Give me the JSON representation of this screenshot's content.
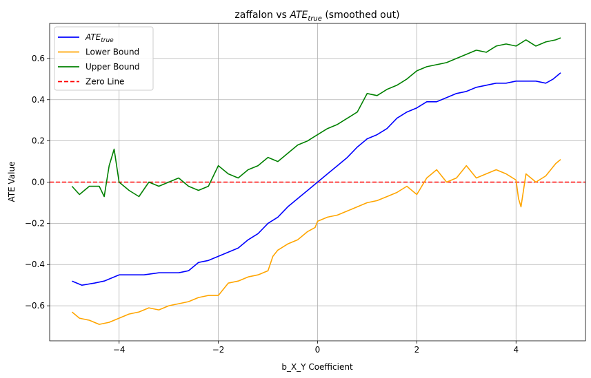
{
  "chart_data": {
    "type": "line",
    "title": {
      "prefix": "zaffalon vs ",
      "math_base": "ATE",
      "math_sub": "true",
      "suffix": " (smoothed out)"
    },
    "xlabel": "b_X_Y Coefficient",
    "ylabel": "ATE Value",
    "xlim": [
      -5.4,
      5.4
    ],
    "ylim": [
      -0.77,
      0.77
    ],
    "xticks": [
      -4,
      -2,
      0,
      2,
      4
    ],
    "yticks": [
      -0.6,
      -0.4,
      -0.2,
      0.0,
      0.2,
      0.4,
      0.6
    ],
    "xtick_labels": [
      "−4",
      "−2",
      "0",
      "2",
      "4"
    ],
    "ytick_labels": [
      "−0.6",
      "−0.4",
      "−0.2",
      "0.0",
      "0.2",
      "0.4",
      "0.6"
    ],
    "grid": true,
    "legend_position": "top-left",
    "series": [
      {
        "key": "ate_true",
        "name_base": "ATE",
        "name_sub": "true",
        "color": "#0000ff",
        "style": "solid",
        "points": [
          [
            -4.95,
            -0.48
          ],
          [
            -4.75,
            -0.5
          ],
          [
            -4.5,
            -0.49
          ],
          [
            -4.3,
            -0.48
          ],
          [
            -4.2,
            -0.47
          ],
          [
            -4.0,
            -0.45
          ],
          [
            -3.8,
            -0.45
          ],
          [
            -3.5,
            -0.45
          ],
          [
            -3.2,
            -0.44
          ],
          [
            -3.0,
            -0.44
          ],
          [
            -2.8,
            -0.44
          ],
          [
            -2.6,
            -0.43
          ],
          [
            -2.4,
            -0.39
          ],
          [
            -2.2,
            -0.38
          ],
          [
            -2.0,
            -0.36
          ],
          [
            -1.8,
            -0.34
          ],
          [
            -1.6,
            -0.32
          ],
          [
            -1.4,
            -0.28
          ],
          [
            -1.2,
            -0.25
          ],
          [
            -1.0,
            -0.2
          ],
          [
            -0.8,
            -0.17
          ],
          [
            -0.6,
            -0.12
          ],
          [
            -0.4,
            -0.08
          ],
          [
            -0.2,
            -0.04
          ],
          [
            0.0,
            0.0
          ],
          [
            0.2,
            0.04
          ],
          [
            0.4,
            0.08
          ],
          [
            0.6,
            0.12
          ],
          [
            0.8,
            0.17
          ],
          [
            1.0,
            0.21
          ],
          [
            1.2,
            0.23
          ],
          [
            1.4,
            0.26
          ],
          [
            1.6,
            0.31
          ],
          [
            1.8,
            0.34
          ],
          [
            2.0,
            0.36
          ],
          [
            2.2,
            0.39
          ],
          [
            2.4,
            0.39
          ],
          [
            2.6,
            0.41
          ],
          [
            2.8,
            0.43
          ],
          [
            3.0,
            0.44
          ],
          [
            3.2,
            0.46
          ],
          [
            3.4,
            0.47
          ],
          [
            3.6,
            0.48
          ],
          [
            3.8,
            0.48
          ],
          [
            4.0,
            0.49
          ],
          [
            4.2,
            0.49
          ],
          [
            4.4,
            0.49
          ],
          [
            4.6,
            0.48
          ],
          [
            4.75,
            0.5
          ],
          [
            4.9,
            0.53
          ]
        ]
      },
      {
        "key": "lower_bound",
        "name": "Lower Bound",
        "color": "#ffa500",
        "style": "solid",
        "points": [
          [
            -4.95,
            -0.63
          ],
          [
            -4.8,
            -0.66
          ],
          [
            -4.6,
            -0.67
          ],
          [
            -4.4,
            -0.69
          ],
          [
            -4.2,
            -0.68
          ],
          [
            -4.0,
            -0.66
          ],
          [
            -3.8,
            -0.64
          ],
          [
            -3.6,
            -0.63
          ],
          [
            -3.4,
            -0.61
          ],
          [
            -3.2,
            -0.62
          ],
          [
            -3.0,
            -0.6
          ],
          [
            -2.8,
            -0.59
          ],
          [
            -2.6,
            -0.58
          ],
          [
            -2.4,
            -0.56
          ],
          [
            -2.2,
            -0.55
          ],
          [
            -2.0,
            -0.55
          ],
          [
            -1.8,
            -0.49
          ],
          [
            -1.6,
            -0.48
          ],
          [
            -1.4,
            -0.46
          ],
          [
            -1.2,
            -0.45
          ],
          [
            -1.0,
            -0.43
          ],
          [
            -0.9,
            -0.36
          ],
          [
            -0.8,
            -0.33
          ],
          [
            -0.6,
            -0.3
          ],
          [
            -0.4,
            -0.28
          ],
          [
            -0.2,
            -0.24
          ],
          [
            -0.05,
            -0.22
          ],
          [
            0.0,
            -0.19
          ],
          [
            0.2,
            -0.17
          ],
          [
            0.4,
            -0.16
          ],
          [
            0.6,
            -0.14
          ],
          [
            0.8,
            -0.12
          ],
          [
            1.0,
            -0.1
          ],
          [
            1.2,
            -0.09
          ],
          [
            1.4,
            -0.07
          ],
          [
            1.6,
            -0.05
          ],
          [
            1.8,
            -0.02
          ],
          [
            2.0,
            -0.06
          ],
          [
            2.2,
            0.02
          ],
          [
            2.4,
            0.06
          ],
          [
            2.6,
            0.0
          ],
          [
            2.8,
            0.02
          ],
          [
            3.0,
            0.08
          ],
          [
            3.2,
            0.02
          ],
          [
            3.4,
            0.04
          ],
          [
            3.6,
            0.06
          ],
          [
            3.8,
            0.04
          ],
          [
            4.0,
            0.01
          ],
          [
            4.05,
            -0.08
          ],
          [
            4.1,
            -0.12
          ],
          [
            4.2,
            0.04
          ],
          [
            4.4,
            0.0
          ],
          [
            4.6,
            0.03
          ],
          [
            4.8,
            0.09
          ],
          [
            4.9,
            0.11
          ]
        ]
      },
      {
        "key": "upper_bound",
        "name": "Upper Bound",
        "color": "#008000",
        "style": "solid",
        "points": [
          [
            -4.95,
            -0.02
          ],
          [
            -4.8,
            -0.06
          ],
          [
            -4.6,
            -0.02
          ],
          [
            -4.4,
            -0.02
          ],
          [
            -4.3,
            -0.07
          ],
          [
            -4.2,
            0.08
          ],
          [
            -4.1,
            0.16
          ],
          [
            -4.0,
            0.0
          ],
          [
            -3.8,
            -0.04
          ],
          [
            -3.6,
            -0.07
          ],
          [
            -3.4,
            0.0
          ],
          [
            -3.2,
            -0.02
          ],
          [
            -3.0,
            0.0
          ],
          [
            -2.8,
            0.02
          ],
          [
            -2.6,
            -0.02
          ],
          [
            -2.4,
            -0.04
          ],
          [
            -2.2,
            -0.02
          ],
          [
            -2.0,
            0.08
          ],
          [
            -1.8,
            0.04
          ],
          [
            -1.6,
            0.02
          ],
          [
            -1.4,
            0.06
          ],
          [
            -1.2,
            0.08
          ],
          [
            -1.0,
            0.12
          ],
          [
            -0.8,
            0.1
          ],
          [
            -0.6,
            0.14
          ],
          [
            -0.4,
            0.18
          ],
          [
            -0.2,
            0.2
          ],
          [
            0.0,
            0.23
          ],
          [
            0.2,
            0.26
          ],
          [
            0.4,
            0.28
          ],
          [
            0.6,
            0.31
          ],
          [
            0.8,
            0.34
          ],
          [
            1.0,
            0.43
          ],
          [
            1.2,
            0.42
          ],
          [
            1.4,
            0.45
          ],
          [
            1.6,
            0.47
          ],
          [
            1.8,
            0.5
          ],
          [
            2.0,
            0.54
          ],
          [
            2.2,
            0.56
          ],
          [
            2.4,
            0.57
          ],
          [
            2.6,
            0.58
          ],
          [
            2.8,
            0.6
          ],
          [
            3.0,
            0.62
          ],
          [
            3.2,
            0.64
          ],
          [
            3.4,
            0.63
          ],
          [
            3.6,
            0.66
          ],
          [
            3.8,
            0.67
          ],
          [
            4.0,
            0.66
          ],
          [
            4.2,
            0.69
          ],
          [
            4.4,
            0.66
          ],
          [
            4.6,
            0.68
          ],
          [
            4.8,
            0.69
          ],
          [
            4.9,
            0.7
          ]
        ]
      },
      {
        "key": "zero_line",
        "name": "Zero Line",
        "color": "#ff0000",
        "style": "dashed",
        "points": [
          [
            -5.4,
            0.0
          ],
          [
            5.4,
            0.0
          ]
        ]
      }
    ]
  }
}
